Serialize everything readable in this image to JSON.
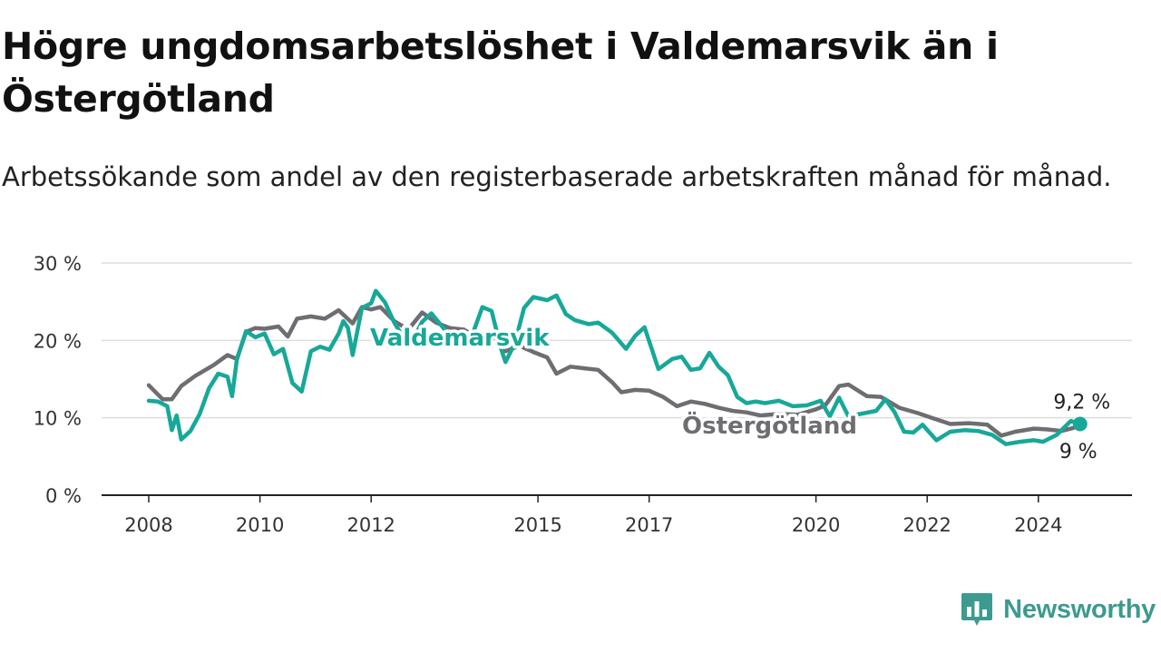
{
  "header": {
    "title": "Högre ungdomsarbetslöshet i Valdemarsvik än i Östergötland",
    "subtitle": "Arbetssökande som andel av den registerbaserade arbetskraften månad för månad."
  },
  "brand": {
    "name": "Newsworthy",
    "icon": "newsworthy-logo-icon",
    "color": "#3d9a8f"
  },
  "colors": {
    "valdemarsvik": "#17a898",
    "ostergotland": "#6e6d71",
    "grid": "#dddddd",
    "axis": "#222222"
  },
  "chart_data": {
    "type": "line",
    "y_unit": "%",
    "ylim": [
      0,
      30
    ],
    "y_ticks": [
      0,
      10,
      20,
      30
    ],
    "y_tick_labels": [
      "0 %",
      "10 %",
      "20 %",
      "30 %"
    ],
    "x_range": [
      "2008-01",
      "2024-12"
    ],
    "x_ticks": [
      "2008-01",
      "2010-01",
      "2012-01",
      "2015-01",
      "2017-01",
      "2020-01",
      "2022-01",
      "2024-01"
    ],
    "x_tick_labels": [
      "2008",
      "2010",
      "2012",
      "2015",
      "2017",
      "2020",
      "2022",
      "2024"
    ],
    "grid": "horizontal",
    "end_labels": {
      "Valdemarsvik": "9,2 %",
      "Östergötland": "9 %"
    },
    "series": [
      {
        "name": "Valdemarsvik",
        "color": "#17a898",
        "points": [
          [
            "2008-01",
            12.2
          ],
          [
            "2008-03",
            12.1
          ],
          [
            "2008-05",
            11.5
          ],
          [
            "2008-06",
            8.4
          ],
          [
            "2008-07",
            10.3
          ],
          [
            "2008-08",
            7.2
          ],
          [
            "2008-10",
            8.3
          ],
          [
            "2008-12",
            10.5
          ],
          [
            "2009-02",
            13.8
          ],
          [
            "2009-04",
            15.7
          ],
          [
            "2009-06",
            15.3
          ],
          [
            "2009-07",
            12.8
          ],
          [
            "2009-08",
            17.5
          ],
          [
            "2009-10",
            21.2
          ],
          [
            "2009-12",
            20.4
          ],
          [
            "2010-02",
            20.9
          ],
          [
            "2010-04",
            18.2
          ],
          [
            "2010-06",
            18.9
          ],
          [
            "2010-08",
            14.5
          ],
          [
            "2010-10",
            13.4
          ],
          [
            "2010-12",
            18.6
          ],
          [
            "2011-02",
            19.2
          ],
          [
            "2011-04",
            18.8
          ],
          [
            "2011-06",
            20.9
          ],
          [
            "2011-07",
            22.5
          ],
          [
            "2011-08",
            21.6
          ],
          [
            "2011-09",
            18.1
          ],
          [
            "2011-11",
            24.2
          ],
          [
            "2012-01",
            24.8
          ],
          [
            "2012-02",
            26.4
          ],
          [
            "2012-04",
            24.9
          ],
          [
            "2012-06",
            22.3
          ],
          [
            "2012-08",
            20.3
          ],
          [
            "2012-10",
            20.1
          ],
          [
            "2012-12",
            22.4
          ],
          [
            "2013-02",
            23.5
          ],
          [
            "2013-05",
            21.3
          ],
          [
            "2013-08",
            19.6
          ],
          [
            "2013-11",
            21.0
          ],
          [
            "2014-01",
            24.3
          ],
          [
            "2014-03",
            23.8
          ],
          [
            "2014-05",
            19.0
          ],
          [
            "2014-06",
            17.2
          ],
          [
            "2014-08",
            19.6
          ],
          [
            "2014-10",
            24.2
          ],
          [
            "2014-12",
            25.6
          ],
          [
            "2015-03",
            25.2
          ],
          [
            "2015-05",
            25.8
          ],
          [
            "2015-07",
            23.4
          ],
          [
            "2015-09",
            22.6
          ],
          [
            "2015-12",
            22.1
          ],
          [
            "2016-02",
            22.3
          ],
          [
            "2016-05",
            21.0
          ],
          [
            "2016-08",
            18.9
          ],
          [
            "2016-10",
            20.6
          ],
          [
            "2016-12",
            21.7
          ],
          [
            "2017-03",
            16.3
          ],
          [
            "2017-06",
            17.6
          ],
          [
            "2017-08",
            17.9
          ],
          [
            "2017-10",
            16.2
          ],
          [
            "2017-12",
            16.4
          ],
          [
            "2018-02",
            18.4
          ],
          [
            "2018-04",
            16.6
          ],
          [
            "2018-06",
            15.5
          ],
          [
            "2018-08",
            12.7
          ],
          [
            "2018-10",
            11.9
          ],
          [
            "2018-12",
            12.1
          ],
          [
            "2019-02",
            11.9
          ],
          [
            "2019-05",
            12.2
          ],
          [
            "2019-08",
            11.5
          ],
          [
            "2019-11",
            11.6
          ],
          [
            "2020-02",
            12.2
          ],
          [
            "2020-04",
            10.2
          ],
          [
            "2020-06",
            12.6
          ],
          [
            "2020-08",
            10.2
          ],
          [
            "2021-02",
            10.9
          ],
          [
            "2021-04",
            12.4
          ],
          [
            "2021-06",
            10.7
          ],
          [
            "2021-08",
            8.2
          ],
          [
            "2021-10",
            8.1
          ],
          [
            "2021-12",
            9.1
          ],
          [
            "2022-03",
            7.1
          ],
          [
            "2022-06",
            8.2
          ],
          [
            "2022-09",
            8.4
          ],
          [
            "2022-12",
            8.3
          ],
          [
            "2023-03",
            7.8
          ],
          [
            "2023-06",
            6.6
          ],
          [
            "2023-09",
            6.9
          ],
          [
            "2023-12",
            7.1
          ],
          [
            "2024-02",
            6.9
          ],
          [
            "2024-05",
            7.8
          ],
          [
            "2024-08",
            9.6
          ],
          [
            "2024-10",
            9.2
          ]
        ]
      },
      {
        "name": "Östergötland",
        "color": "#6e6d71",
        "points": [
          [
            "2008-01",
            14.2
          ],
          [
            "2008-04",
            12.4
          ],
          [
            "2008-06",
            12.4
          ],
          [
            "2008-08",
            14.1
          ],
          [
            "2008-11",
            15.4
          ],
          [
            "2009-03",
            16.8
          ],
          [
            "2009-06",
            18.1
          ],
          [
            "2009-08",
            17.6
          ],
          [
            "2009-10",
            21.1
          ],
          [
            "2009-12",
            21.6
          ],
          [
            "2010-02",
            21.5
          ],
          [
            "2010-05",
            21.8
          ],
          [
            "2010-07",
            20.5
          ],
          [
            "2010-09",
            22.8
          ],
          [
            "2010-12",
            23.1
          ],
          [
            "2011-03",
            22.8
          ],
          [
            "2011-06",
            23.9
          ],
          [
            "2011-09",
            22.2
          ],
          [
            "2011-11",
            24.3
          ],
          [
            "2012-01",
            24.0
          ],
          [
            "2012-03",
            24.3
          ],
          [
            "2012-06",
            22.5
          ],
          [
            "2012-09",
            21.4
          ],
          [
            "2012-12",
            23.6
          ],
          [
            "2013-03",
            22.3
          ],
          [
            "2013-06",
            21.6
          ],
          [
            "2013-09",
            21.4
          ],
          [
            "2013-12",
            20.3
          ],
          [
            "2014-03",
            20.9
          ],
          [
            "2014-06",
            18.6
          ],
          [
            "2014-09",
            19.3
          ],
          [
            "2014-12",
            18.5
          ],
          [
            "2015-03",
            17.8
          ],
          [
            "2015-05",
            15.7
          ],
          [
            "2015-08",
            16.6
          ],
          [
            "2015-11",
            16.4
          ],
          [
            "2016-02",
            16.2
          ],
          [
            "2016-05",
            14.6
          ],
          [
            "2016-07",
            13.3
          ],
          [
            "2016-10",
            13.6
          ],
          [
            "2017-01",
            13.5
          ],
          [
            "2017-04",
            12.7
          ],
          [
            "2017-07",
            11.5
          ],
          [
            "2017-10",
            12.1
          ],
          [
            "2018-01",
            11.8
          ],
          [
            "2018-04",
            11.3
          ],
          [
            "2018-07",
            10.9
          ],
          [
            "2018-10",
            10.7
          ],
          [
            "2019-01",
            10.3
          ],
          [
            "2019-05",
            10.5
          ],
          [
            "2019-09",
            10.4
          ],
          [
            "2020-01",
            11.1
          ],
          [
            "2020-03",
            11.6
          ],
          [
            "2020-06",
            14.1
          ],
          [
            "2020-08",
            14.3
          ],
          [
            "2020-12",
            12.8
          ],
          [
            "2021-03",
            12.7
          ],
          [
            "2021-07",
            11.3
          ],
          [
            "2021-11",
            10.6
          ],
          [
            "2022-02",
            10.0
          ],
          [
            "2022-06",
            9.2
          ],
          [
            "2022-10",
            9.3
          ],
          [
            "2023-02",
            9.1
          ],
          [
            "2023-05",
            7.7
          ],
          [
            "2023-08",
            8.2
          ],
          [
            "2023-12",
            8.6
          ],
          [
            "2024-03",
            8.5
          ],
          [
            "2024-06",
            8.3
          ],
          [
            "2024-08",
            8.6
          ],
          [
            "2024-10",
            9.0
          ]
        ]
      }
    ]
  }
}
